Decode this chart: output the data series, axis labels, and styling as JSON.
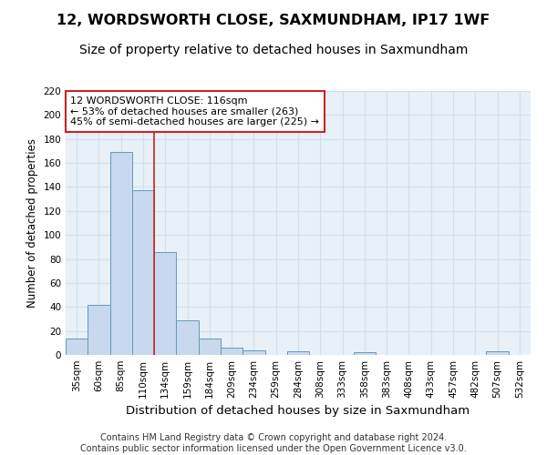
{
  "title": "12, WORDSWORTH CLOSE, SAXMUNDHAM, IP17 1WF",
  "subtitle": "Size of property relative to detached houses in Saxmundham",
  "xlabel": "Distribution of detached houses by size in Saxmundham",
  "ylabel": "Number of detached properties",
  "categories": [
    "35sqm",
    "60sqm",
    "85sqm",
    "110sqm",
    "134sqm",
    "159sqm",
    "184sqm",
    "209sqm",
    "234sqm",
    "259sqm",
    "284sqm",
    "308sqm",
    "333sqm",
    "358sqm",
    "383sqm",
    "408sqm",
    "433sqm",
    "457sqm",
    "482sqm",
    "507sqm",
    "532sqm"
  ],
  "values": [
    14,
    42,
    169,
    137,
    86,
    29,
    14,
    6,
    4,
    0,
    3,
    0,
    0,
    2,
    0,
    0,
    0,
    0,
    0,
    3,
    0
  ],
  "bar_color": "#c8d8ee",
  "bar_edge_color": "#6699bb",
  "grid_color": "#d0e0ee",
  "background_color": "#e8f0f8",
  "vline_x": 3.5,
  "vline_color": "#cc2222",
  "annotation_text": "12 WORDSWORTH CLOSE: 116sqm\n← 53% of detached houses are smaller (263)\n45% of semi-detached houses are larger (225) →",
  "annotation_box_color": "#ffffff",
  "annotation_box_edge": "#cc2222",
  "ylim": [
    0,
    220
  ],
  "yticks": [
    0,
    20,
    40,
    60,
    80,
    100,
    120,
    140,
    160,
    180,
    200,
    220
  ],
  "footer_text": "Contains HM Land Registry data © Crown copyright and database right 2024.\nContains public sector information licensed under the Open Government Licence v3.0.",
  "title_fontsize": 11.5,
  "subtitle_fontsize": 10,
  "xlabel_fontsize": 9.5,
  "ylabel_fontsize": 8.5,
  "tick_fontsize": 7.5,
  "annotation_fontsize": 8,
  "footer_fontsize": 7
}
